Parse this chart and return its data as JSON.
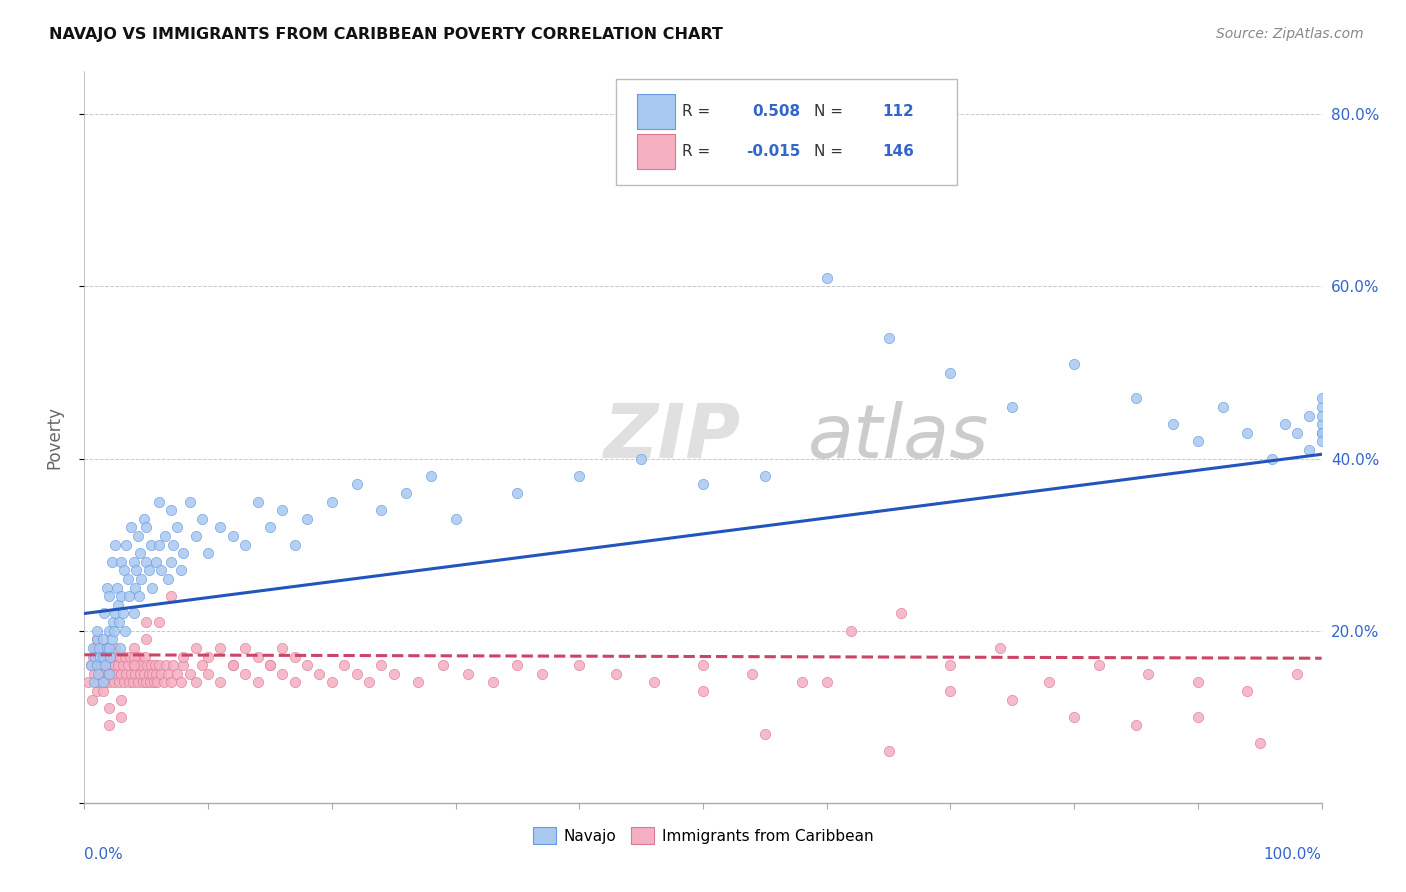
{
  "title": "NAVAJO VS IMMIGRANTS FROM CARIBBEAN POVERTY CORRELATION CHART",
  "source": "Source: ZipAtlas.com",
  "ylabel": "Poverty",
  "legend_label1": "Navajo",
  "legend_label2": "Immigrants from Caribbean",
  "r1": 0.508,
  "n1": 112,
  "r2": -0.015,
  "n2": 146,
  "watermark_zip": "ZIP",
  "watermark_atlas": "atlas",
  "color_blue": "#A8C8F0",
  "color_pink": "#F4B0C0",
  "color_blue_edge": "#6699DD",
  "color_pink_edge": "#DD7799",
  "color_line_blue": "#2255BB",
  "color_line_pink": "#CC4466",
  "color_text_blue": "#3366CC",
  "color_grid": "#BBBBBB",
  "color_axis": "#AAAAAA",
  "xlim": [
    0.0,
    1.0
  ],
  "ylim": [
    0.0,
    0.85
  ],
  "yticks": [
    0.0,
    0.2,
    0.4,
    0.6,
    0.8
  ],
  "ytick_labels": [
    "",
    "20.0%",
    "40.0%",
    "60.0%",
    "80.0%"
  ],
  "blue_line_y0": 0.22,
  "blue_line_y1": 0.405,
  "pink_line_y0": 0.172,
  "pink_line_y1": 0.168,
  "navajo_x": [
    0.005,
    0.007,
    0.008,
    0.009,
    0.01,
    0.01,
    0.01,
    0.011,
    0.012,
    0.013,
    0.015,
    0.015,
    0.015,
    0.016,
    0.017,
    0.018,
    0.018,
    0.02,
    0.02,
    0.02,
    0.02,
    0.021,
    0.022,
    0.022,
    0.023,
    0.024,
    0.025,
    0.025,
    0.026,
    0.027,
    0.028,
    0.029,
    0.03,
    0.03,
    0.031,
    0.032,
    0.033,
    0.034,
    0.035,
    0.036,
    0.038,
    0.04,
    0.04,
    0.041,
    0.042,
    0.043,
    0.044,
    0.045,
    0.046,
    0.048,
    0.05,
    0.05,
    0.052,
    0.054,
    0.055,
    0.058,
    0.06,
    0.06,
    0.062,
    0.065,
    0.068,
    0.07,
    0.07,
    0.072,
    0.075,
    0.078,
    0.08,
    0.085,
    0.09,
    0.095,
    0.1,
    0.11,
    0.12,
    0.13,
    0.14,
    0.15,
    0.16,
    0.17,
    0.18,
    0.2,
    0.22,
    0.24,
    0.26,
    0.28,
    0.3,
    0.35,
    0.4,
    0.45,
    0.5,
    0.55,
    0.6,
    0.65,
    0.7,
    0.75,
    0.8,
    0.85,
    0.88,
    0.9,
    0.92,
    0.94,
    0.96,
    0.97,
    0.98,
    0.99,
    0.99,
    1.0,
    1.0,
    1.0,
    1.0,
    1.0,
    1.0,
    1.0
  ],
  "navajo_y": [
    0.16,
    0.18,
    0.14,
    0.17,
    0.16,
    0.19,
    0.2,
    0.15,
    0.18,
    0.17,
    0.14,
    0.17,
    0.19,
    0.22,
    0.16,
    0.18,
    0.25,
    0.15,
    0.18,
    0.2,
    0.24,
    0.17,
    0.19,
    0.28,
    0.21,
    0.2,
    0.22,
    0.3,
    0.25,
    0.23,
    0.21,
    0.18,
    0.24,
    0.28,
    0.22,
    0.27,
    0.2,
    0.3,
    0.26,
    0.24,
    0.32,
    0.22,
    0.28,
    0.25,
    0.27,
    0.31,
    0.24,
    0.29,
    0.26,
    0.33,
    0.28,
    0.32,
    0.27,
    0.3,
    0.25,
    0.28,
    0.3,
    0.35,
    0.27,
    0.31,
    0.26,
    0.34,
    0.28,
    0.3,
    0.32,
    0.27,
    0.29,
    0.35,
    0.31,
    0.33,
    0.29,
    0.32,
    0.31,
    0.3,
    0.35,
    0.32,
    0.34,
    0.3,
    0.33,
    0.35,
    0.37,
    0.34,
    0.36,
    0.38,
    0.33,
    0.36,
    0.38,
    0.4,
    0.37,
    0.38,
    0.61,
    0.54,
    0.5,
    0.46,
    0.51,
    0.47,
    0.44,
    0.42,
    0.46,
    0.43,
    0.4,
    0.44,
    0.43,
    0.45,
    0.41,
    0.43,
    0.46,
    0.44,
    0.47,
    0.43,
    0.45,
    0.42
  ],
  "carib_x": [
    0.003,
    0.005,
    0.006,
    0.007,
    0.008,
    0.009,
    0.01,
    0.01,
    0.01,
    0.01,
    0.011,
    0.012,
    0.013,
    0.013,
    0.014,
    0.015,
    0.015,
    0.016,
    0.017,
    0.018,
    0.018,
    0.019,
    0.02,
    0.02,
    0.021,
    0.022,
    0.023,
    0.024,
    0.025,
    0.025,
    0.026,
    0.027,
    0.028,
    0.029,
    0.03,
    0.031,
    0.032,
    0.033,
    0.034,
    0.035,
    0.036,
    0.037,
    0.038,
    0.039,
    0.04,
    0.04,
    0.041,
    0.042,
    0.043,
    0.044,
    0.045,
    0.046,
    0.047,
    0.048,
    0.049,
    0.05,
    0.051,
    0.052,
    0.053,
    0.054,
    0.055,
    0.056,
    0.057,
    0.058,
    0.059,
    0.06,
    0.062,
    0.064,
    0.066,
    0.068,
    0.07,
    0.072,
    0.075,
    0.078,
    0.08,
    0.085,
    0.09,
    0.095,
    0.1,
    0.11,
    0.12,
    0.13,
    0.14,
    0.15,
    0.16,
    0.17,
    0.18,
    0.19,
    0.2,
    0.21,
    0.22,
    0.23,
    0.24,
    0.25,
    0.27,
    0.29,
    0.31,
    0.33,
    0.35,
    0.37,
    0.4,
    0.43,
    0.46,
    0.5,
    0.54,
    0.58,
    0.62,
    0.66,
    0.7,
    0.74,
    0.78,
    0.82,
    0.86,
    0.9,
    0.94,
    0.98,
    0.5,
    0.55,
    0.6,
    0.65,
    0.7,
    0.75,
    0.8,
    0.85,
    0.9,
    0.95,
    0.02,
    0.02,
    0.03,
    0.03,
    0.04,
    0.04,
    0.05,
    0.05,
    0.06,
    0.07,
    0.08,
    0.09,
    0.1,
    0.11,
    0.12,
    0.13,
    0.14,
    0.15,
    0.16,
    0.17
  ],
  "carib_y": [
    0.14,
    0.16,
    0.12,
    0.17,
    0.15,
    0.18,
    0.13,
    0.16,
    0.18,
    0.19,
    0.14,
    0.17,
    0.15,
    0.18,
    0.16,
    0.13,
    0.17,
    0.15,
    0.14,
    0.16,
    0.18,
    0.15,
    0.14,
    0.17,
    0.16,
    0.15,
    0.17,
    0.14,
    0.16,
    0.18,
    0.15,
    0.16,
    0.14,
    0.17,
    0.15,
    0.16,
    0.14,
    0.17,
    0.15,
    0.16,
    0.14,
    0.17,
    0.15,
    0.14,
    0.16,
    0.18,
    0.15,
    0.16,
    0.14,
    0.17,
    0.15,
    0.16,
    0.14,
    0.15,
    0.17,
    0.14,
    0.16,
    0.15,
    0.14,
    0.16,
    0.15,
    0.14,
    0.16,
    0.15,
    0.14,
    0.16,
    0.15,
    0.14,
    0.16,
    0.15,
    0.14,
    0.16,
    0.15,
    0.14,
    0.16,
    0.15,
    0.14,
    0.16,
    0.15,
    0.14,
    0.16,
    0.15,
    0.14,
    0.16,
    0.15,
    0.14,
    0.16,
    0.15,
    0.14,
    0.16,
    0.15,
    0.14,
    0.16,
    0.15,
    0.14,
    0.16,
    0.15,
    0.14,
    0.16,
    0.15,
    0.16,
    0.15,
    0.14,
    0.16,
    0.15,
    0.14,
    0.2,
    0.22,
    0.16,
    0.18,
    0.14,
    0.16,
    0.15,
    0.14,
    0.13,
    0.15,
    0.13,
    0.08,
    0.14,
    0.06,
    0.13,
    0.12,
    0.1,
    0.09,
    0.1,
    0.07,
    0.11,
    0.09,
    0.12,
    0.1,
    0.17,
    0.16,
    0.19,
    0.21,
    0.21,
    0.24,
    0.17,
    0.18,
    0.17,
    0.18,
    0.16,
    0.18,
    0.17,
    0.16,
    0.18,
    0.17
  ]
}
